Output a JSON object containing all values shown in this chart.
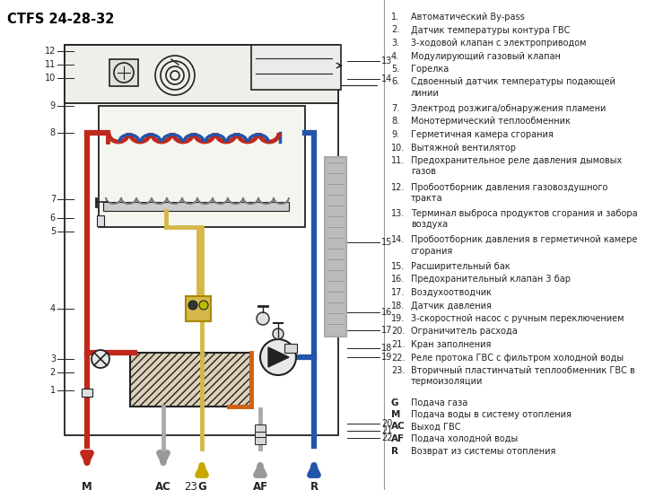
{
  "title": "CTFS 24-28-32",
  "bg_color": "#ffffff",
  "legend_items": [
    {
      "num": "1.",
      "text": "Автоматический By-pass",
      "lines": 1
    },
    {
      "num": "2.",
      "text": "Датчик температуры контура ГВС",
      "lines": 1
    },
    {
      "num": "3.",
      "text": "3-ходовой клапан с электроприводом",
      "lines": 1
    },
    {
      "num": "4.",
      "text": "Модулирующий газовый клапан",
      "lines": 1
    },
    {
      "num": "5.",
      "text": "Горелка",
      "lines": 1
    },
    {
      "num": "6.",
      "text": "Сдвоенный датчик температуры подающей\nлинии",
      "lines": 2
    },
    {
      "num": "7.",
      "text": "Электрод розжига/обнаружения пламени",
      "lines": 1
    },
    {
      "num": "8.",
      "text": "Монотермический теплообменник",
      "lines": 1
    },
    {
      "num": "9.",
      "text": "Герметичная камера сгорания",
      "lines": 1
    },
    {
      "num": "10.",
      "text": "Вытяжной вентилятор",
      "lines": 1
    },
    {
      "num": "11.",
      "text": "Предохранительное реле давления дымовых\nгазов",
      "lines": 2
    },
    {
      "num": "12.",
      "text": "Пробоотборник давления газовоздушного\nтракта",
      "lines": 2
    },
    {
      "num": "13.",
      "text": "Терминал выброса продуктов сгорания и забора\nвоздуха",
      "lines": 2
    },
    {
      "num": "14.",
      "text": "Пробоотборник давления в герметичной камере\nсгорания",
      "lines": 2
    },
    {
      "num": "15.",
      "text": "Расширительный бак",
      "lines": 1
    },
    {
      "num": "16.",
      "text": "Предохранительный клапан 3 бар",
      "lines": 1
    },
    {
      "num": "17.",
      "text": "Воздухоотводчик",
      "lines": 1
    },
    {
      "num": "18.",
      "text": "Датчик давления",
      "lines": 1
    },
    {
      "num": "19.",
      "text": "3-скоростной насос с ручным переключением",
      "lines": 1
    },
    {
      "num": "20.",
      "text": "Ограничитель расхода",
      "lines": 1
    },
    {
      "num": "21.",
      "text": "Кран заполнения",
      "lines": 1
    },
    {
      "num": "22.",
      "text": "Реле протока ГВС с фильтром холодной воды",
      "lines": 1
    },
    {
      "num": "23.",
      "text": "Вторичный пластинчатый теплообменник ГВС в\nтермоизоляции",
      "lines": 2
    }
  ],
  "legend_connectors": [
    {
      "letter": "G",
      "text": "Подача газа"
    },
    {
      "letter": "M",
      "text": "Подача воды в систему отопления"
    },
    {
      "letter": "AC",
      "text": "Выход ГВС"
    },
    {
      "letter": "AF",
      "text": "Подача холодной воды"
    },
    {
      "letter": "R",
      "text": "Возврат из системы отопления"
    }
  ],
  "color_red": "#c0281c",
  "color_blue": "#2255aa",
  "color_yellow": "#d4b84a",
  "color_orange": "#d06010",
  "color_gray": "#aaaaaa",
  "color_dark": "#222222",
  "color_light_gray": "#cccccc"
}
